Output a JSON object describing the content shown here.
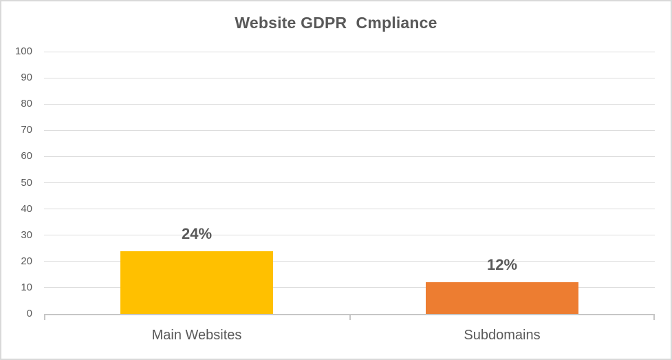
{
  "chart_data": {
    "type": "bar",
    "title": "Website GDPR  Cmpliance",
    "categories": [
      "Main Websites",
      "Subdomains"
    ],
    "values": [
      24,
      12
    ],
    "data_labels": [
      "24%",
      "12%"
    ],
    "bar_colors": [
      "#FFC000",
      "#ED7D31"
    ],
    "ylim": [
      0,
      100
    ],
    "yticks": [
      0,
      10,
      20,
      30,
      40,
      50,
      60,
      70,
      80,
      90,
      100
    ],
    "grid": true,
    "legend": "none",
    "xlabel": "",
    "ylabel": ""
  },
  "style": {
    "text_color": "#595959",
    "gridline_color": "#DCDCDC",
    "axis_line_color": "#C6C6C6",
    "border_color": "#D9D9D9",
    "background": "#FFFFFF"
  }
}
